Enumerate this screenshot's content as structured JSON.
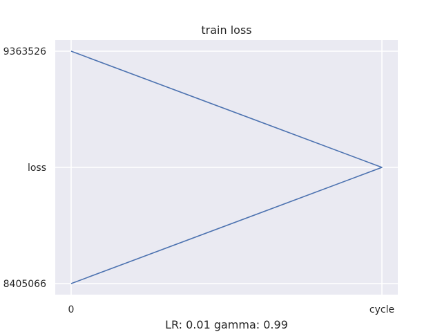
{
  "chart_data": {
    "type": "line",
    "title": "train loss",
    "xlabel": "LR: 0.01 gamma: 0.99",
    "ylabel": "",
    "x_categories": [
      "0",
      "cycle"
    ],
    "y_categories": [
      "8405066",
      "loss",
      "9363526"
    ],
    "series": [
      {
        "x": [
          "0",
          "cycle",
          "0"
        ],
        "y": [
          "9363526",
          "loss",
          "8405066"
        ]
      }
    ],
    "grid": true,
    "legend": "none",
    "colors": {
      "background": "#eaeaf2",
      "grid": "#ffffff",
      "line": "#4c72b0",
      "text": "#262626"
    }
  }
}
